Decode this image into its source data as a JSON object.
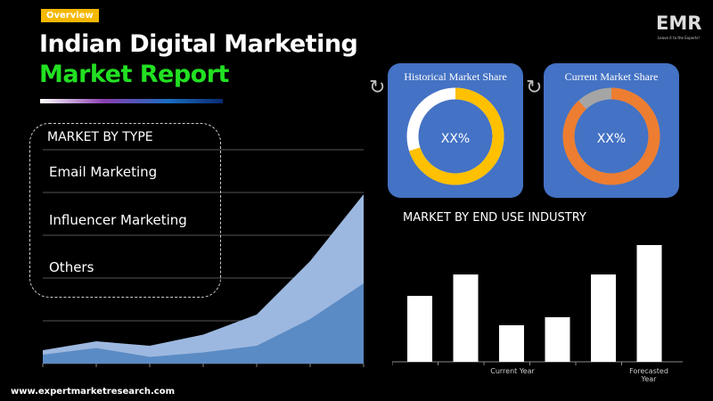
{
  "badge": "Overview",
  "title_line1": "Indian Digital Marketing",
  "title_line2": "Market Report",
  "logo": {
    "text": "EMR",
    "tagline": "Leave it to the Experts!"
  },
  "market_by_type": {
    "heading": "MARKET BY TYPE",
    "items": [
      "Email Marketing",
      "Influencer Marketing",
      "Others"
    ]
  },
  "cards": [
    {
      "title": "Historical Market Share",
      "value": "XX%",
      "ring_color": "#ffc000",
      "rest_color": "#ffffff",
      "share": 0.7
    },
    {
      "title": "Current Market Share",
      "value": "XX%",
      "ring_color": "#ed7d31",
      "rest_color": "#a5a5a5",
      "share": 0.88
    }
  ],
  "end_use": {
    "heading": "MARKET BY END USE INDUSTRY"
  },
  "chart_data": [
    {
      "type": "area",
      "grid": true,
      "series": [
        {
          "values": [
            3,
            5,
            4,
            6.5,
            11,
            23,
            38
          ],
          "color": "#9db8e0"
        },
        {
          "values": [
            2,
            3.5,
            1.5,
            2.5,
            4,
            10,
            18
          ],
          "color": "#5b8bc4"
        }
      ]
    },
    {
      "type": "bar",
      "categories": [
        "",
        "",
        "Current Year",
        "",
        "",
        "Forecasted Year"
      ],
      "values": [
        74,
        98,
        41,
        50,
        98,
        131
      ],
      "color": "#ffffff"
    }
  ],
  "footer_url": "www.expertmarketresearch.com"
}
